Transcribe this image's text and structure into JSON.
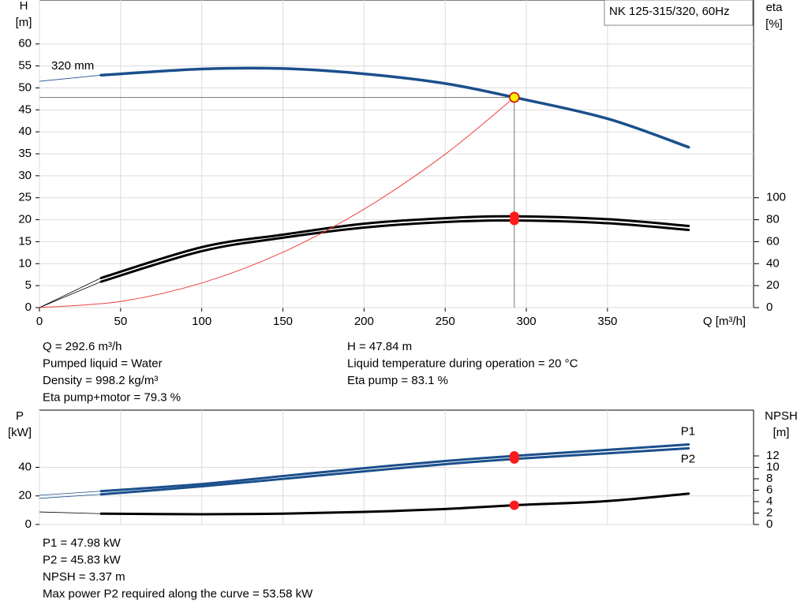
{
  "chart_data": [
    {
      "type": "line",
      "title": "NK 125-315/320, 60Hz",
      "xlabel": "Q [m³/h]",
      "ylabel": [
        "H",
        "[m]"
      ],
      "y2label": [
        "eta",
        "[%]"
      ],
      "xlim": [
        0,
        440
      ],
      "xticks": [
        0,
        50,
        100,
        150,
        200,
        250,
        300,
        350
      ],
      "xtick_labels": true,
      "ylim": [
        0,
        70
      ],
      "yticks": [
        0,
        5,
        10,
        15,
        20,
        25,
        30,
        35,
        40,
        45,
        50,
        55,
        60
      ],
      "y2lim": [
        0,
        280
      ],
      "y2ticks": [
        0,
        20,
        40,
        60,
        80,
        100
      ],
      "grid": true,
      "series": [
        {
          "name": "320 mm",
          "color": "#1b4f8c",
          "width": 3.5,
          "x": [
            0,
            38,
            100,
            150,
            200,
            250,
            292.6,
            350,
            400
          ],
          "values": [
            51.5,
            52.9,
            54.3,
            54.4,
            53.2,
            51,
            47.84,
            43,
            36.5
          ]
        },
        {
          "color": "#000000",
          "width": 3,
          "axis": "y2",
          "x": [
            0,
            38,
            100,
            150,
            200,
            250,
            292.6,
            350,
            400
          ],
          "values": [
            0,
            27,
            55,
            66.4,
            76.4,
            81.4,
            83.1,
            80.5,
            74.3
          ]
        },
        {
          "color": "#000000",
          "width": 3,
          "axis": "y2",
          "x": [
            0,
            38,
            100,
            150,
            200,
            250,
            292.6,
            350,
            400
          ],
          "values": [
            0,
            23.6,
            51.4,
            63.6,
            72.9,
            77.9,
            79.3,
            76.8,
            70.7
          ]
        },
        {
          "color": "#f04040",
          "width": 1,
          "x": [
            0,
            50,
            100,
            150,
            200,
            250,
            292.6
          ],
          "values": [
            0,
            1.4,
            5.6,
            12.6,
            22.4,
            34.9,
            47.84
          ]
        }
      ],
      "points": [
        {
          "x": 292.6,
          "y": 47.84,
          "color": "#ffee00",
          "guides": true
        },
        {
          "x": 292.6,
          "y": 83.1,
          "axis": "y2",
          "color": "#ff1a1a"
        },
        {
          "x": 292.6,
          "y": 79.3,
          "axis": "y2",
          "color": "#ff1a1a"
        }
      ]
    },
    {
      "type": "line",
      "ylabel": [
        "P",
        "[kW]"
      ],
      "y2label": [
        "NPSH",
        "[m]"
      ],
      "xlim": [
        0,
        440
      ],
      "xticks": [
        0,
        50,
        100,
        150,
        200,
        250,
        300,
        350
      ],
      "ylim": [
        0,
        80
      ],
      "yticks": [
        0,
        20,
        40
      ],
      "y2lim": [
        0,
        20
      ],
      "y2ticks": [
        0,
        2,
        4,
        6,
        8,
        10,
        12
      ],
      "grid": true,
      "series": [
        {
          "name": "P1",
          "color": "#1b4f8c",
          "width": 3,
          "x": [
            0,
            38,
            100,
            150,
            200,
            250,
            292.6,
            350,
            400
          ],
          "values": [
            20.5,
            23.3,
            28.3,
            33.9,
            39.4,
            44.4,
            47.98,
            52.2,
            56
          ]
        },
        {
          "name": "P2",
          "color": "#1b4f8c",
          "width": 3,
          "x": [
            0,
            38,
            100,
            150,
            200,
            250,
            292.6,
            350,
            400
          ],
          "values": [
            18.3,
            21.1,
            26.7,
            31.9,
            37.2,
            42.2,
            45.83,
            49.8,
            53.3
          ]
        },
        {
          "color": "#000000",
          "width": 3,
          "axis": "y2",
          "x": [
            0,
            38,
            100,
            150,
            200,
            250,
            292.6,
            350,
            400
          ],
          "values": [
            2.2,
            1.9,
            1.8,
            1.9,
            2.2,
            2.7,
            3.37,
            4.1,
            5.4
          ]
        }
      ],
      "points": [
        {
          "x": 292.6,
          "y": 47.98,
          "color": "#ff1a1a"
        },
        {
          "x": 292.6,
          "y": 45.83,
          "color": "#ff1a1a"
        },
        {
          "x": 292.6,
          "y": 3.37,
          "axis": "y2",
          "color": "#ff1a1a"
        }
      ]
    }
  ],
  "top_info": {
    "left": [
      "Q = 292.6 m³/h",
      "Pumped liquid = Water",
      "Density = 998.2 kg/m³",
      "Eta pump+motor = 79.3 %"
    ],
    "right": [
      "H = 47.84 m",
      "Liquid temperature during operation = 20 °C",
      "Eta pump = 83.1 %"
    ]
  },
  "bottom_info": [
    "P1 = 47.98 kW",
    "P2 = 45.83 kW",
    "NPSH = 3.37 m",
    "Max power P2 required along the curve = 53.58 kW"
  ]
}
